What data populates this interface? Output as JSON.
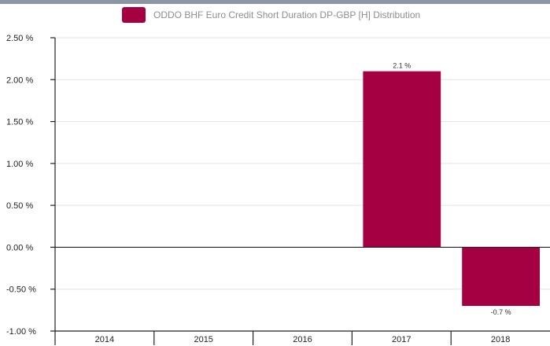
{
  "legend": {
    "label": "ODDO BHF Euro Credit Short Duration  DP-GBP [H] Distribution",
    "color": "#a50042"
  },
  "chart_data": {
    "type": "bar",
    "categories": [
      "2014",
      "2015",
      "2016",
      "2017",
      "2018"
    ],
    "series": [
      {
        "name": "ODDO BHF Euro Credit Short Duration  DP-GBP [H] Distribution",
        "values": [
          null,
          null,
          null,
          2.1,
          -0.7
        ],
        "labels": [
          "",
          "",
          "",
          "2.1 %",
          "-0.7 %"
        ]
      }
    ],
    "yticks": [
      "2.50 %",
      "2.00 %",
      "1.50 %",
      "1.00 %",
      "0.50 %",
      "0.00 %",
      "-0.50 %",
      "-1.00 %"
    ],
    "ytick_values": [
      2.5,
      2.0,
      1.5,
      1.0,
      0.5,
      0.0,
      -0.5,
      -1.0
    ],
    "ylim": [
      -1.0,
      2.5
    ],
    "grid": true,
    "legend_position": "top",
    "bar_color": "#a50042"
  }
}
